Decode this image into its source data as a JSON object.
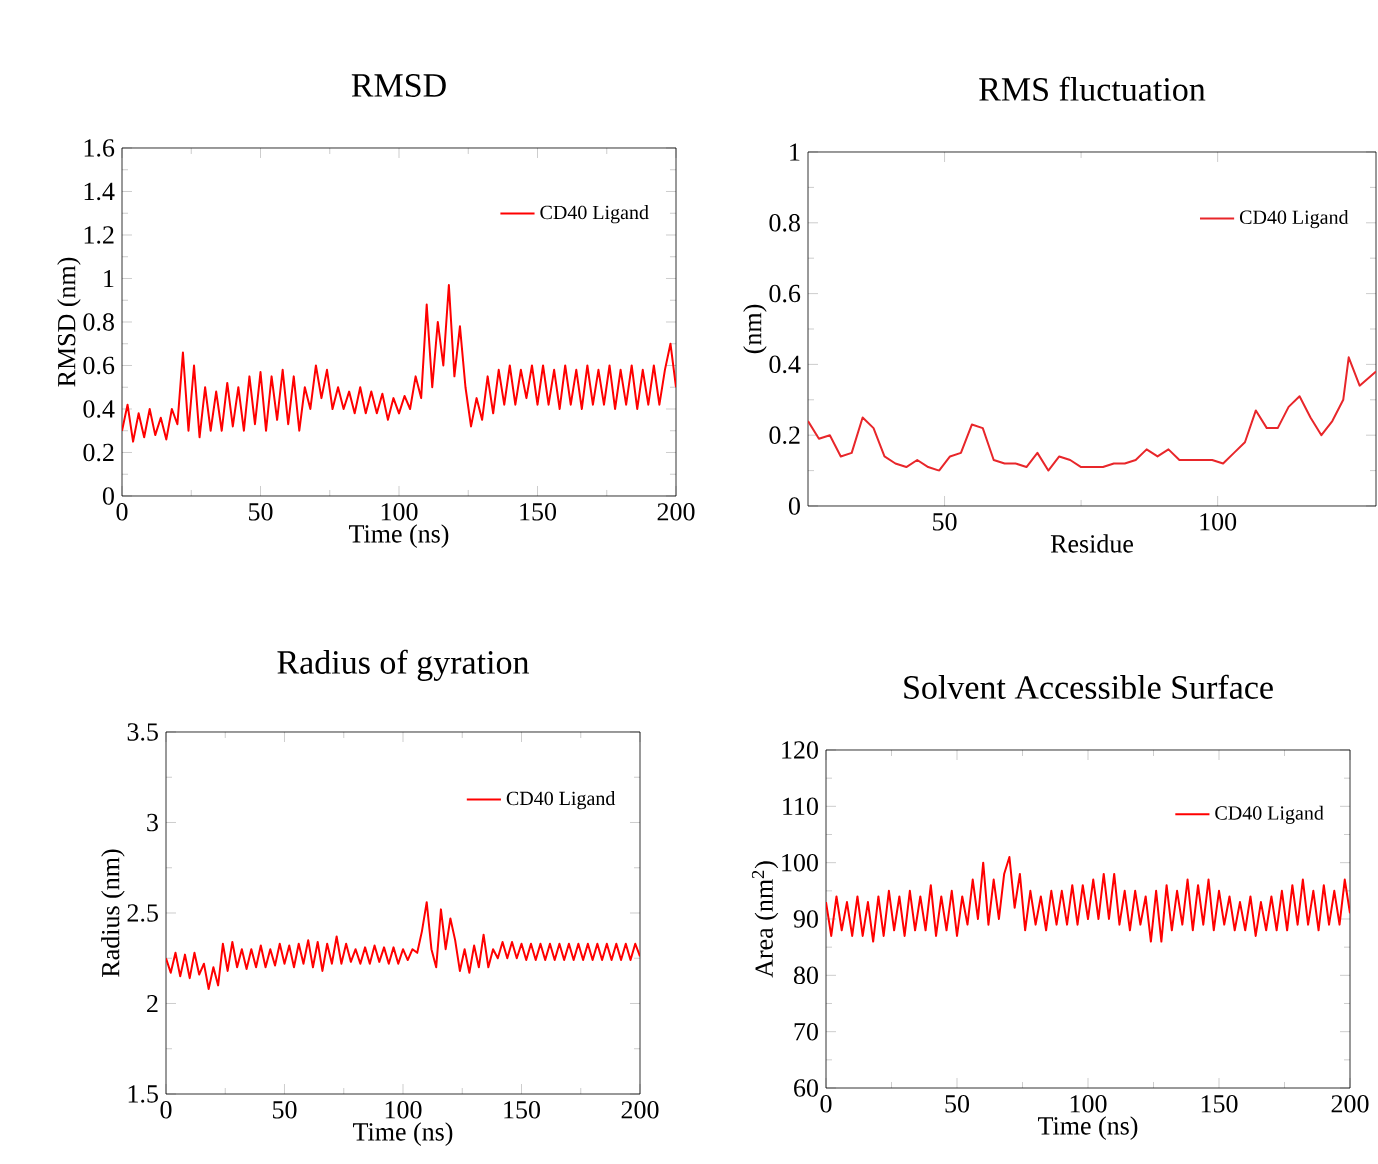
{
  "chart_data": [
    {
      "type": "line",
      "title": "RMSD",
      "xlabel": "Time (ns)",
      "ylabel": "RMSD (nm)",
      "xlim": [
        0,
        200
      ],
      "ylim": [
        0,
        1.6
      ],
      "xticks": [
        0,
        50,
        100,
        150,
        200
      ],
      "yticks": [
        0,
        0.2,
        0.4,
        0.6,
        0.8,
        1,
        1.2,
        1.4,
        1.6
      ],
      "legend": "top right",
      "x": [
        0,
        2,
        4,
        6,
        8,
        10,
        12,
        14,
        16,
        18,
        20,
        22,
        24,
        26,
        28,
        30,
        32,
        34,
        36,
        38,
        40,
        42,
        44,
        46,
        48,
        50,
        52,
        54,
        56,
        58,
        60,
        62,
        64,
        66,
        68,
        70,
        72,
        74,
        76,
        78,
        80,
        82,
        84,
        86,
        88,
        90,
        92,
        94,
        96,
        98,
        100,
        102,
        104,
        106,
        108,
        110,
        112,
        114,
        116,
        118,
        120,
        122,
        124,
        126,
        128,
        130,
        132,
        134,
        136,
        138,
        140,
        142,
        144,
        146,
        148,
        150,
        152,
        154,
        156,
        158,
        160,
        162,
        164,
        166,
        168,
        170,
        172,
        174,
        176,
        178,
        180,
        182,
        184,
        186,
        188,
        190,
        192,
        194,
        196,
        198,
        200
      ],
      "series": [
        {
          "name": "CD40 Ligand",
          "color": "#ff0000",
          "values": [
            0.3,
            0.42,
            0.25,
            0.38,
            0.27,
            0.4,
            0.28,
            0.36,
            0.26,
            0.4,
            0.33,
            0.66,
            0.3,
            0.6,
            0.27,
            0.5,
            0.3,
            0.48,
            0.3,
            0.52,
            0.32,
            0.5,
            0.3,
            0.55,
            0.33,
            0.57,
            0.3,
            0.55,
            0.35,
            0.58,
            0.33,
            0.55,
            0.3,
            0.5,
            0.4,
            0.6,
            0.45,
            0.58,
            0.4,
            0.5,
            0.4,
            0.48,
            0.38,
            0.5,
            0.38,
            0.48,
            0.38,
            0.47,
            0.35,
            0.45,
            0.38,
            0.46,
            0.4,
            0.55,
            0.45,
            0.88,
            0.5,
            0.8,
            0.6,
            0.97,
            0.55,
            0.78,
            0.5,
            0.32,
            0.45,
            0.35,
            0.55,
            0.38,
            0.58,
            0.42,
            0.6,
            0.42,
            0.58,
            0.45,
            0.6,
            0.42,
            0.6,
            0.42,
            0.58,
            0.4,
            0.6,
            0.42,
            0.58,
            0.4,
            0.6,
            0.42,
            0.58,
            0.42,
            0.6,
            0.4,
            0.58,
            0.42,
            0.6,
            0.4,
            0.58,
            0.42,
            0.6,
            0.42,
            0.58,
            0.7,
            0.5
          ]
        }
      ]
    },
    {
      "type": "line",
      "title": "RMS fluctuation",
      "xlabel": "Residue",
      "ylabel": "(nm)",
      "xlim": [
        25,
        129
      ],
      "ylim": [
        0,
        1
      ],
      "xticks": [
        50,
        100
      ],
      "yticks": [
        0,
        0.2,
        0.4,
        0.6,
        0.8,
        1
      ],
      "legend": "top right",
      "x": [
        25,
        27,
        29,
        31,
        33,
        35,
        37,
        39,
        41,
        43,
        45,
        47,
        49,
        51,
        53,
        55,
        57,
        59,
        61,
        63,
        65,
        67,
        69,
        71,
        73,
        75,
        77,
        79,
        81,
        83,
        85,
        87,
        89,
        91,
        93,
        95,
        97,
        99,
        101,
        103,
        105,
        107,
        109,
        111,
        113,
        115,
        117,
        119,
        121,
        123,
        124,
        126,
        129
      ],
      "series": [
        {
          "name": "CD40 Ligand",
          "color": "#e8262a",
          "values": [
            0.24,
            0.19,
            0.2,
            0.14,
            0.15,
            0.25,
            0.22,
            0.14,
            0.12,
            0.11,
            0.13,
            0.11,
            0.1,
            0.14,
            0.15,
            0.23,
            0.22,
            0.13,
            0.12,
            0.12,
            0.11,
            0.15,
            0.1,
            0.14,
            0.13,
            0.11,
            0.11,
            0.11,
            0.12,
            0.12,
            0.13,
            0.16,
            0.14,
            0.16,
            0.13,
            0.13,
            0.13,
            0.13,
            0.12,
            0.15,
            0.18,
            0.27,
            0.22,
            0.22,
            0.28,
            0.31,
            0.25,
            0.2,
            0.24,
            0.3,
            0.42,
            0.34,
            0.38
          ]
        }
      ]
    },
    {
      "type": "line",
      "title": "Radius of gyration",
      "xlabel": "Time (ns)",
      "ylabel": "Radius (nm)",
      "xlim": [
        0,
        200
      ],
      "ylim": [
        1.5,
        3.5
      ],
      "xticks": [
        0,
        50,
        100,
        150,
        200
      ],
      "yticks": [
        1.5,
        2,
        2.5,
        3,
        3.5
      ],
      "legend": "top right",
      "x": [
        0,
        2,
        4,
        6,
        8,
        10,
        12,
        14,
        16,
        18,
        20,
        22,
        24,
        26,
        28,
        30,
        32,
        34,
        36,
        38,
        40,
        42,
        44,
        46,
        48,
        50,
        52,
        54,
        56,
        58,
        60,
        62,
        64,
        66,
        68,
        70,
        72,
        74,
        76,
        78,
        80,
        82,
        84,
        86,
        88,
        90,
        92,
        94,
        96,
        98,
        100,
        102,
        104,
        106,
        108,
        110,
        112,
        114,
        116,
        118,
        120,
        122,
        124,
        126,
        128,
        130,
        132,
        134,
        136,
        138,
        140,
        142,
        144,
        146,
        148,
        150,
        152,
        154,
        156,
        158,
        160,
        162,
        164,
        166,
        168,
        170,
        172,
        174,
        176,
        178,
        180,
        182,
        184,
        186,
        188,
        190,
        192,
        194,
        196,
        198,
        200
      ],
      "series": [
        {
          "name": "CD40 Ligand",
          "color": "#ff0000",
          "values": [
            2.25,
            2.17,
            2.28,
            2.15,
            2.27,
            2.14,
            2.28,
            2.16,
            2.22,
            2.08,
            2.2,
            2.1,
            2.33,
            2.18,
            2.34,
            2.2,
            2.3,
            2.19,
            2.3,
            2.2,
            2.32,
            2.2,
            2.3,
            2.21,
            2.33,
            2.22,
            2.32,
            2.2,
            2.33,
            2.22,
            2.35,
            2.2,
            2.34,
            2.18,
            2.33,
            2.22,
            2.37,
            2.22,
            2.33,
            2.23,
            2.3,
            2.22,
            2.31,
            2.22,
            2.32,
            2.23,
            2.31,
            2.22,
            2.31,
            2.22,
            2.3,
            2.24,
            2.3,
            2.28,
            2.4,
            2.56,
            2.3,
            2.2,
            2.52,
            2.3,
            2.47,
            2.35,
            2.18,
            2.3,
            2.17,
            2.32,
            2.2,
            2.38,
            2.2,
            2.3,
            2.25,
            2.34,
            2.25,
            2.34,
            2.25,
            2.33,
            2.24,
            2.33,
            2.24,
            2.33,
            2.24,
            2.33,
            2.24,
            2.33,
            2.24,
            2.33,
            2.24,
            2.33,
            2.24,
            2.33,
            2.24,
            2.33,
            2.24,
            2.33,
            2.24,
            2.33,
            2.24,
            2.33,
            2.24,
            2.33,
            2.26
          ]
        }
      ]
    },
    {
      "type": "line",
      "title": "Solvent Accessible Surface",
      "xlabel": "Time (ns)",
      "ylabel": "Area (nm$^{2}$)",
      "xlim": [
        0,
        200
      ],
      "ylim": [
        60,
        120
      ],
      "xticks": [
        0,
        50,
        100,
        150,
        200
      ],
      "yticks": [
        60,
        70,
        80,
        90,
        100,
        110,
        120
      ],
      "legend": "top right",
      "x": [
        0,
        2,
        4,
        6,
        8,
        10,
        12,
        14,
        16,
        18,
        20,
        22,
        24,
        26,
        28,
        30,
        32,
        34,
        36,
        38,
        40,
        42,
        44,
        46,
        48,
        50,
        52,
        54,
        56,
        58,
        60,
        62,
        64,
        66,
        68,
        70,
        72,
        74,
        76,
        78,
        80,
        82,
        84,
        86,
        88,
        90,
        92,
        94,
        96,
        98,
        100,
        102,
        104,
        106,
        108,
        110,
        112,
        114,
        116,
        118,
        120,
        122,
        124,
        126,
        128,
        130,
        132,
        134,
        136,
        138,
        140,
        142,
        144,
        146,
        148,
        150,
        152,
        154,
        156,
        158,
        160,
        162,
        164,
        166,
        168,
        170,
        172,
        174,
        176,
        178,
        180,
        182,
        184,
        186,
        188,
        190,
        192,
        194,
        196,
        198,
        200
      ],
      "series": [
        {
          "name": "CD40 Ligand",
          "color": "#ff0000",
          "values": [
            93,
            87,
            94,
            88,
            93,
            87,
            94,
            87,
            93,
            86,
            94,
            87,
            95,
            88,
            94,
            87,
            95,
            88,
            94,
            88,
            96,
            87,
            94,
            88,
            95,
            87,
            94,
            89,
            97,
            90,
            100,
            89,
            97,
            90,
            98,
            101,
            92,
            98,
            88,
            95,
            89,
            94,
            88,
            95,
            89,
            95,
            89,
            96,
            89,
            96,
            90,
            97,
            90,
            98,
            90,
            98,
            89,
            95,
            88,
            95,
            89,
            94,
            86,
            95,
            86,
            96,
            88,
            95,
            89,
            97,
            88,
            96,
            89,
            97,
            88,
            95,
            89,
            94,
            88,
            93,
            88,
            94,
            87,
            93,
            88,
            94,
            88,
            95,
            88,
            96,
            89,
            97,
            89,
            95,
            88,
            96,
            89,
            95,
            89,
            97,
            91
          ]
        }
      ]
    }
  ]
}
